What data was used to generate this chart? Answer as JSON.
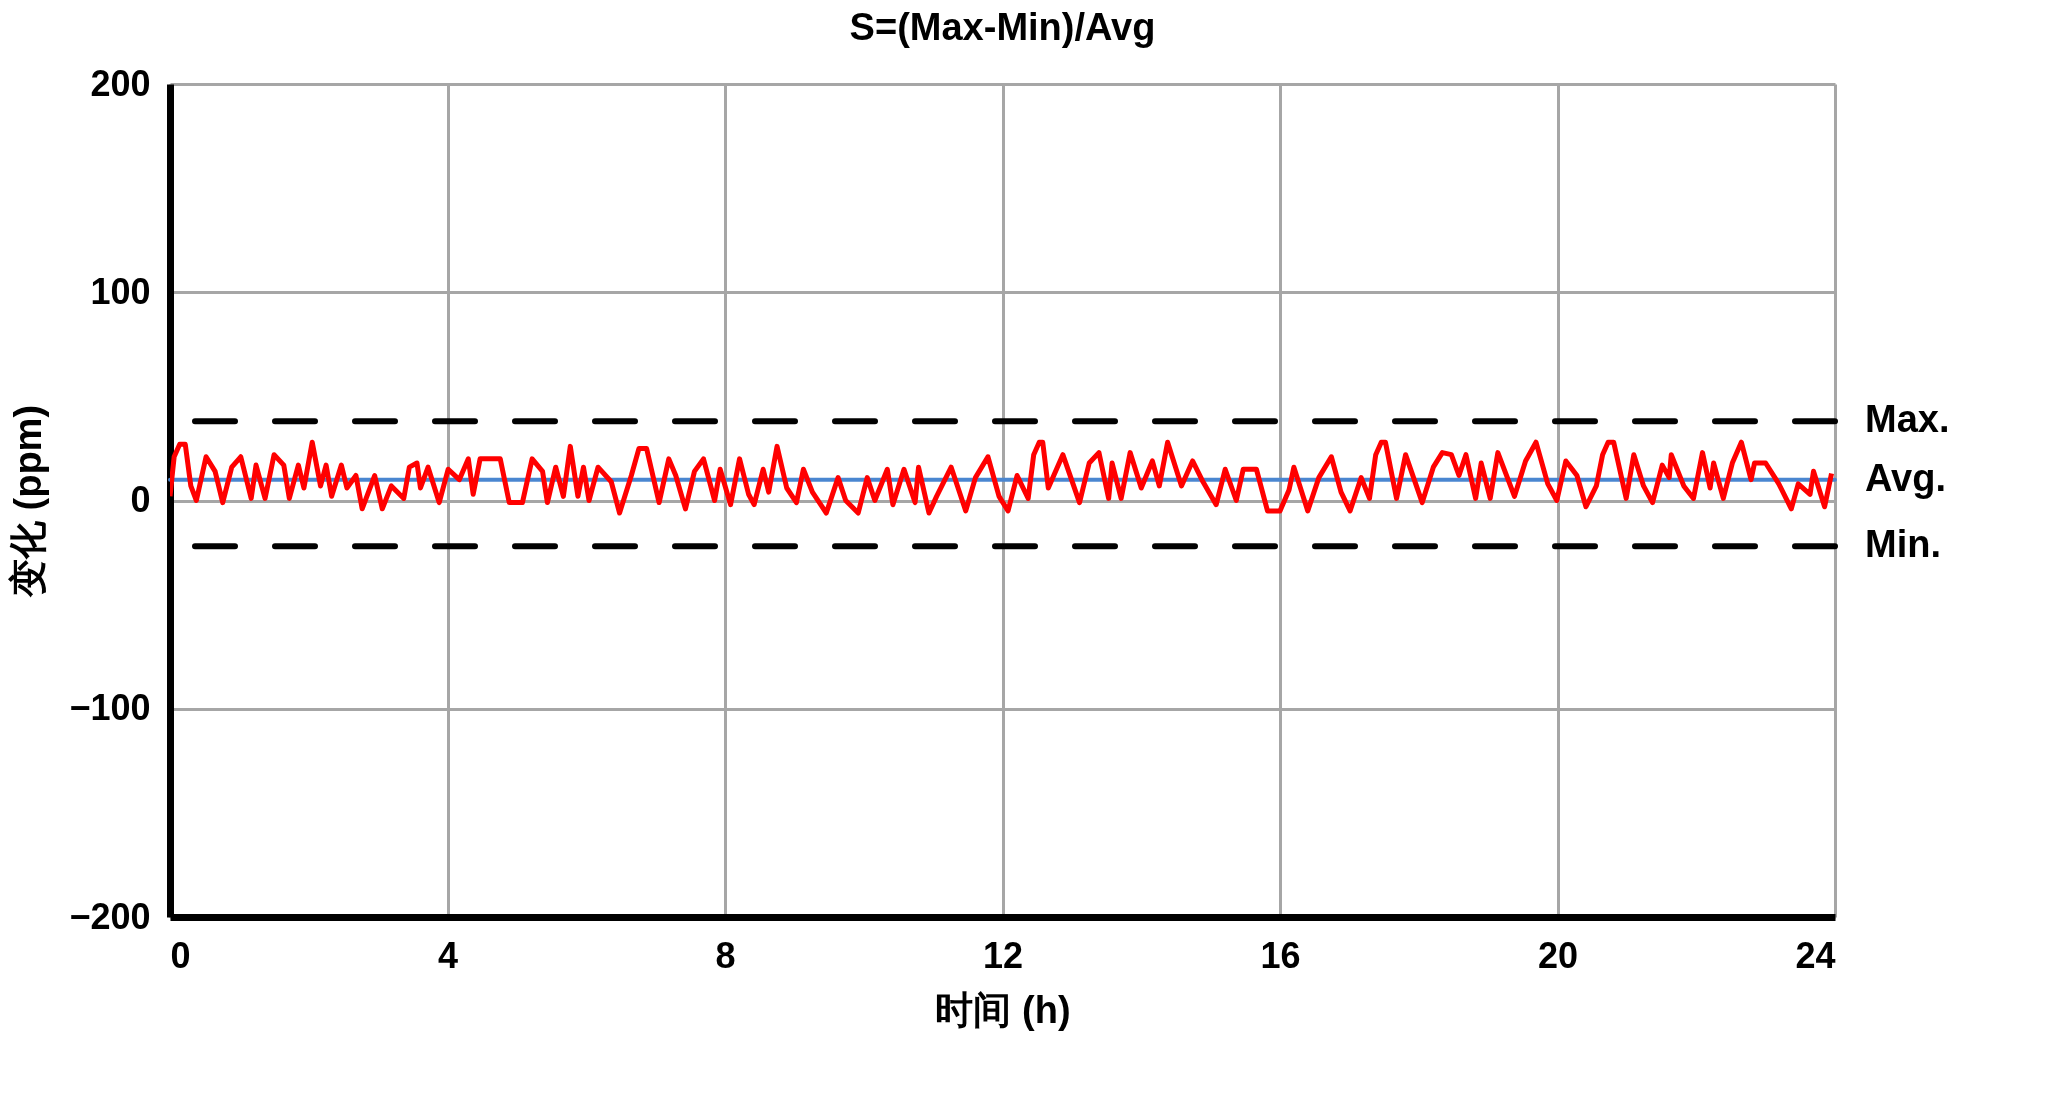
{
  "chart_data": {
    "type": "line",
    "title": "S=(Max-Min)/Avg",
    "xlabel": "时间 (h)",
    "ylabel": "变化 (ppm)",
    "xlim": [
      0,
      24
    ],
    "xticks": [
      0,
      4,
      8,
      12,
      16,
      20,
      24
    ],
    "ylim": [
      -200,
      200
    ],
    "yticks": [
      -200,
      -100,
      0,
      100,
      200
    ],
    "grid": true,
    "marker": "none",
    "line_style": "solid",
    "x": [
      0,
      0.06,
      0.14,
      0.22,
      0.3,
      0.38,
      0.52,
      0.65,
      0.76,
      0.89,
      1.02,
      1.17,
      1.24,
      1.37,
      1.5,
      1.64,
      1.72,
      1.85,
      1.93,
      2.05,
      2.17,
      2.25,
      2.33,
      2.47,
      2.55,
      2.68,
      2.77,
      2.95,
      3.06,
      3.19,
      3.37,
      3.45,
      3.56,
      3.61,
      3.72,
      3.88,
      4.01,
      4.17,
      4.3,
      4.37,
      4.47,
      4.6,
      4.76,
      4.89,
      5.08,
      5.22,
      5.37,
      5.44,
      5.56,
      5.67,
      5.77,
      5.88,
      5.96,
      6.04,
      6.17,
      6.36,
      6.48,
      6.65,
      6.76,
      6.87,
      7.05,
      7.19,
      7.29,
      7.43,
      7.56,
      7.69,
      7.85,
      7.93,
      8.08,
      8.21,
      8.34,
      8.42,
      8.55,
      8.63,
      8.75,
      8.89,
      9.03,
      9.13,
      9.26,
      9.46,
      9.63,
      9.74,
      9.92,
      10.05,
      10.16,
      10.34,
      10.42,
      10.58,
      10.74,
      10.79,
      10.94,
      11.05,
      11.26,
      11.47,
      11.61,
      11.79,
      11.95,
      12.08,
      12.21,
      12.37,
      12.45,
      12.53,
      12.58,
      12.66,
      12.87,
      13.11,
      13.25,
      13.39,
      13.53,
      13.58,
      13.71,
      13.84,
      14.0,
      14.16,
      14.26,
      14.38,
      14.58,
      14.74,
      14.89,
      15.08,
      15.21,
      15.37,
      15.47,
      15.66,
      15.82,
      16.0,
      16.13,
      16.2,
      16.4,
      16.56,
      16.74,
      16.88,
      17.01,
      17.17,
      17.29,
      17.38,
      17.46,
      17.52,
      17.68,
      17.81,
      18.05,
      18.21,
      18.34,
      18.47,
      18.58,
      18.68,
      18.82,
      18.9,
      19.03,
      19.14,
      19.38,
      19.54,
      19.69,
      19.86,
      19.99,
      20.12,
      20.28,
      20.41,
      20.56,
      20.65,
      20.73,
      20.81,
      20.99,
      21.1,
      21.24,
      21.37,
      21.51,
      21.61,
      21.64,
      21.82,
      21.96,
      22.09,
      22.2,
      22.25,
      22.39,
      22.52,
      22.65,
      22.79,
      22.84,
      23.0,
      23.19,
      23.37,
      23.47,
      23.64,
      23.69,
      23.85,
      23.95
    ],
    "series": [
      {
        "color": "#ff0000",
        "values": [
          2,
          21,
          27,
          27,
          7,
          0,
          21,
          14,
          -1,
          16,
          21,
          1,
          17,
          1,
          22,
          17,
          1,
          17,
          6,
          28,
          7,
          17,
          2,
          17,
          6,
          12,
          -4,
          12,
          -4,
          7,
          1,
          16,
          18,
          6,
          16,
          -1,
          15,
          10,
          20,
          3,
          20,
          20,
          20,
          -1,
          -1,
          20,
          14,
          -1,
          16,
          2,
          26,
          2,
          16,
          0,
          16,
          9,
          -6,
          12,
          25,
          25,
          -1,
          20,
          12,
          -4,
          14,
          20,
          0,
          15,
          -2,
          20,
          3,
          -2,
          15,
          4,
          26,
          6,
          -1,
          15,
          4,
          -6,
          11,
          0,
          -6,
          11,
          0,
          15,
          -2,
          15,
          -1,
          16,
          -6,
          2,
          16,
          -5,
          11,
          21,
          2,
          -5,
          12,
          1,
          22,
          28,
          28,
          6,
          22,
          -1,
          18,
          23,
          1,
          18,
          1,
          23,
          6,
          19,
          7,
          28,
          7,
          19,
          9,
          -2,
          15,
          0,
          15,
          15,
          -5,
          -5,
          5,
          16,
          -5,
          11,
          21,
          4,
          -5,
          11,
          1,
          22,
          28,
          28,
          1,
          22,
          -1,
          16,
          23,
          22,
          12,
          22,
          1,
          18,
          1,
          23,
          2,
          19,
          28,
          8,
          0,
          19,
          12,
          -3,
          7,
          22,
          28,
          28,
          1,
          22,
          7,
          -1,
          17,
          11,
          22,
          7,
          1,
          23,
          6,
          18,
          1,
          18,
          28,
          10,
          18,
          18,
          8,
          -4,
          8,
          3,
          14,
          -3,
          13
        ]
      }
    ],
    "ref_lines": [
      {
        "axis": "y",
        "value": 38,
        "label": "Max.",
        "color": "#000000",
        "line_style": "dashed"
      },
      {
        "axis": "y",
        "value": 10,
        "label": "Avg.",
        "color": "#4a86d0",
        "line_style": "solid"
      },
      {
        "axis": "y",
        "value": -22,
        "label": "Min.",
        "color": "#000000",
        "line_style": "dashed"
      }
    ]
  }
}
